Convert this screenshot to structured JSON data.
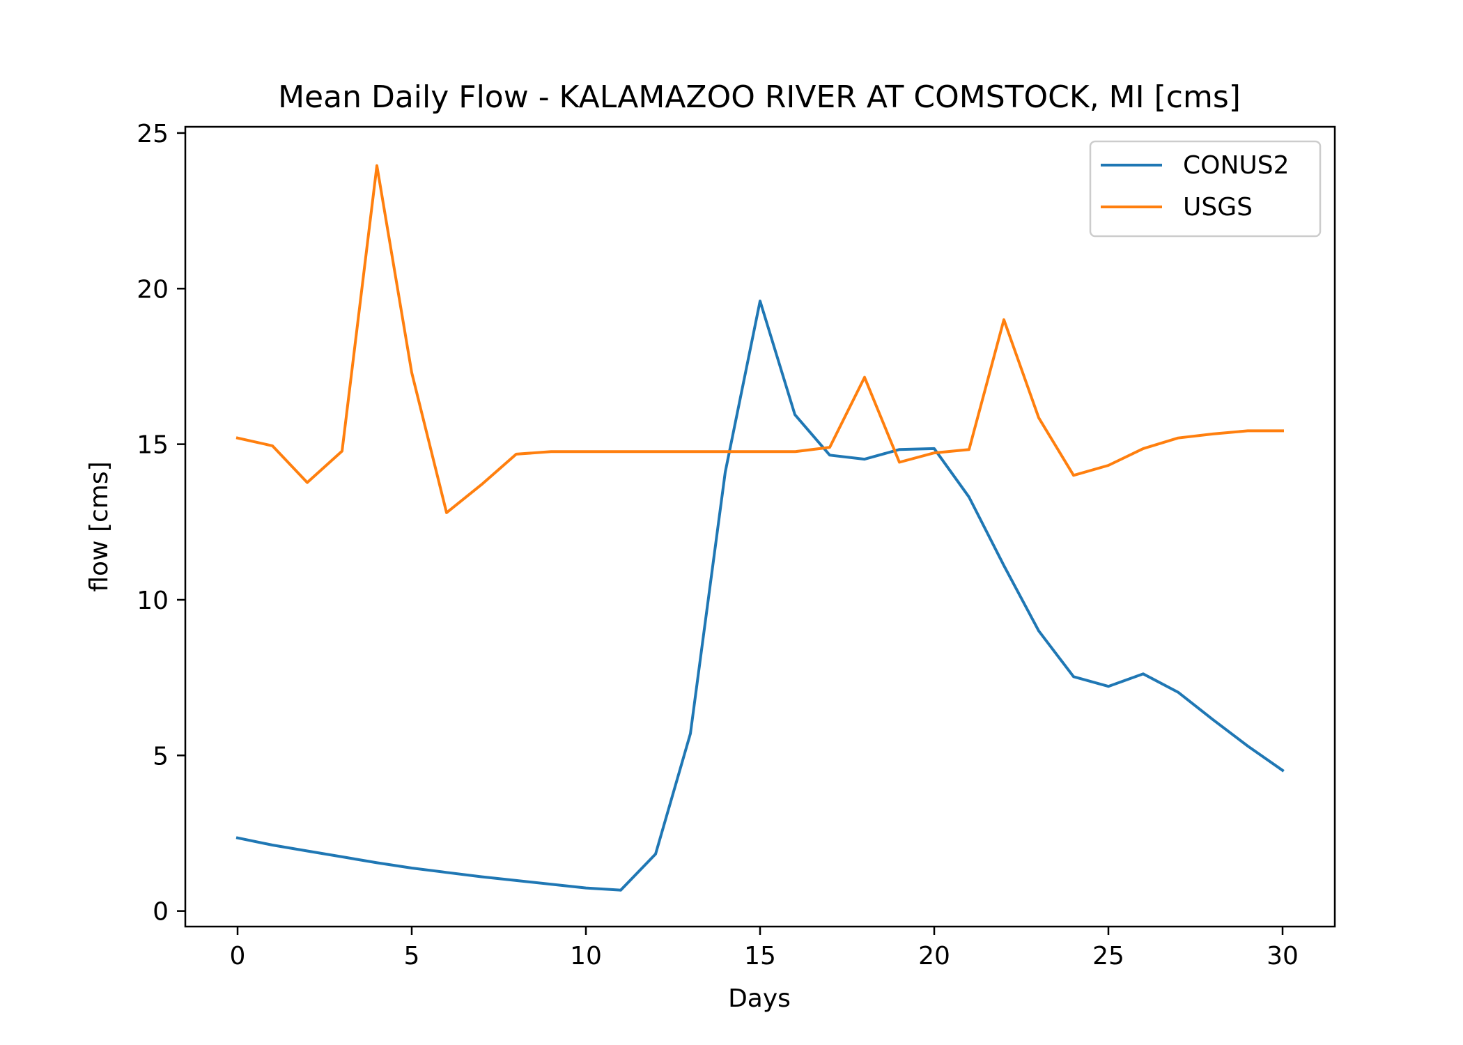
{
  "chart_data": {
    "type": "line",
    "title": "Mean Daily Flow - KALAMAZOO RIVER AT COMSTOCK, MI [cms]",
    "xlabel": "Days",
    "ylabel": "flow [cms]",
    "xlim": [
      -1.5,
      31.5
    ],
    "ylim": [
      -0.5,
      25.2
    ],
    "xticks": [
      0,
      5,
      10,
      15,
      20,
      25,
      30
    ],
    "yticks": [
      0,
      5,
      10,
      15,
      20,
      25
    ],
    "grid": false,
    "legend_position": "upper right",
    "x": [
      0,
      1,
      2,
      3,
      4,
      5,
      6,
      7,
      8,
      9,
      10,
      11,
      12,
      13,
      14,
      15,
      16,
      17,
      18,
      19,
      20,
      21,
      22,
      23,
      24,
      25,
      26,
      27,
      28,
      29,
      30
    ],
    "series": [
      {
        "name": "CONUS2",
        "color": "#1f77b4",
        "values": [
          2.35,
          2.12,
          1.93,
          1.74,
          1.55,
          1.38,
          1.24,
          1.1,
          0.98,
          0.86,
          0.74,
          0.67,
          1.83,
          5.7,
          14.1,
          19.6,
          15.95,
          14.65,
          14.52,
          14.83,
          14.86,
          13.3,
          11.1,
          9.0,
          7.53,
          7.22,
          7.62,
          7.03,
          6.15,
          5.3,
          4.52
        ]
      },
      {
        "name": "USGS",
        "color": "#ff7f0e",
        "values": [
          15.2,
          14.95,
          13.77,
          14.78,
          23.95,
          17.3,
          12.8,
          13.7,
          14.68,
          14.76,
          14.76,
          14.76,
          14.76,
          14.76,
          14.76,
          14.76,
          14.76,
          14.9,
          17.15,
          14.42,
          14.72,
          14.83,
          19.0,
          15.85,
          14.0,
          14.32,
          14.86,
          15.2,
          15.33,
          15.43,
          15.43
        ]
      }
    ]
  }
}
